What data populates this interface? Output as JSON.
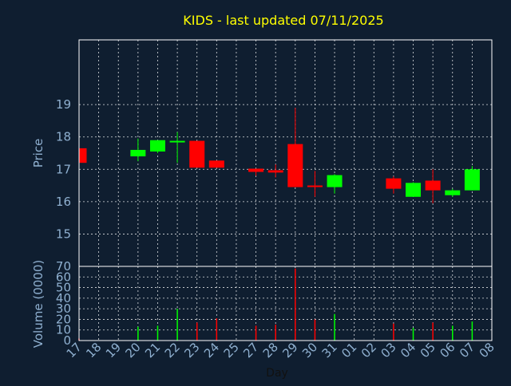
{
  "chart_data": {
    "type": "candlestick",
    "title": "KIDS - last updated 07/11/2025",
    "xlabel": "Day",
    "colors": {
      "background": "#0f1e30",
      "title": "#ffff00",
      "axis_text": "#8fb0d0",
      "grid": "#ffffff",
      "up": "#00ff00",
      "down": "#ff0000"
    },
    "x_ticks": [
      "17",
      "18",
      "19",
      "20",
      "21",
      "22",
      "23",
      "24",
      "25",
      "27",
      "28",
      "29",
      "30",
      "31",
      "01",
      "02",
      "03",
      "04",
      "05",
      "06",
      "07",
      "08"
    ],
    "price_panel": {
      "ylabel": "Price",
      "yticks": [
        15,
        16,
        17,
        18,
        19
      ],
      "ylim": [
        14.0,
        21.0
      ],
      "candles": [
        {
          "day": "17",
          "open": 17.65,
          "high": 17.65,
          "low": 17.2,
          "close": 17.2
        },
        {
          "day": "20",
          "open": 17.4,
          "high": 17.95,
          "low": 17.25,
          "close": 17.6
        },
        {
          "day": "21",
          "open": 17.55,
          "high": 17.9,
          "low": 17.5,
          "close": 17.9
        },
        {
          "day": "22",
          "open": 17.85,
          "high": 18.15,
          "low": 17.2,
          "close": 17.88
        },
        {
          "day": "23",
          "open": 17.88,
          "high": 17.88,
          "low": 17.05,
          "close": 17.05
        },
        {
          "day": "24",
          "open": 17.27,
          "high": 17.27,
          "low": 17.05,
          "close": 17.05
        },
        {
          "day": "27",
          "open": 17.02,
          "high": 17.02,
          "low": 16.8,
          "close": 16.92
        },
        {
          "day": "28",
          "open": 16.97,
          "high": 17.15,
          "low": 16.75,
          "close": 16.9
        },
        {
          "day": "29",
          "open": 17.78,
          "high": 18.9,
          "low": 16.45,
          "close": 16.45
        },
        {
          "day": "30",
          "open": 16.5,
          "high": 16.95,
          "low": 16.15,
          "close": 16.48
        },
        {
          "day": "31",
          "open": 16.45,
          "high": 16.85,
          "low": 16.25,
          "close": 16.82
        },
        {
          "day": "03",
          "open": 16.72,
          "high": 16.78,
          "low": 16.25,
          "close": 16.4
        },
        {
          "day": "04",
          "open": 16.15,
          "high": 16.6,
          "low": 16.15,
          "close": 16.58
        },
        {
          "day": "05",
          "open": 16.65,
          "high": 17.0,
          "low": 15.95,
          "close": 16.35
        },
        {
          "day": "06",
          "open": 16.2,
          "high": 16.4,
          "low": 16.15,
          "close": 16.35
        },
        {
          "day": "07",
          "open": 16.35,
          "high": 17.1,
          "low": 16.35,
          "close": 17.0
        }
      ]
    },
    "volume_panel": {
      "ylabel": "Volume (0000)",
      "yticks": [
        0,
        10,
        20,
        30,
        40,
        50,
        60,
        70
      ],
      "ylim": [
        0,
        70
      ],
      "bars": [
        {
          "day": "17",
          "value": 2
        },
        {
          "day": "20",
          "value": 13
        },
        {
          "day": "21",
          "value": 14
        },
        {
          "day": "22",
          "value": 30
        },
        {
          "day": "23",
          "value": 17
        },
        {
          "day": "24",
          "value": 21
        },
        {
          "day": "27",
          "value": 14
        },
        {
          "day": "28",
          "value": 15
        },
        {
          "day": "29",
          "value": 68
        },
        {
          "day": "30",
          "value": 20
        },
        {
          "day": "31",
          "value": 25
        },
        {
          "day": "03",
          "value": 16
        },
        {
          "day": "04",
          "value": 12
        },
        {
          "day": "05",
          "value": 17
        },
        {
          "day": "06",
          "value": 14
        },
        {
          "day": "07",
          "value": 18
        }
      ]
    }
  }
}
